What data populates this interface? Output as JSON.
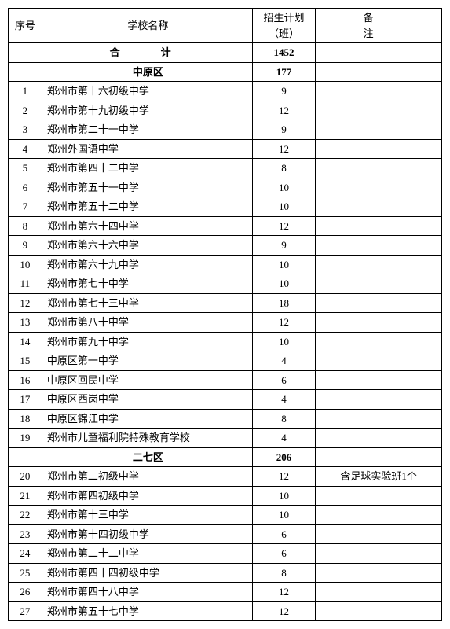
{
  "headers": {
    "num": "序号",
    "name": "学校名称",
    "plan_line1": "招生计划",
    "plan_line2": "（班）",
    "note": "备　　注"
  },
  "total": {
    "label": "合　计",
    "value": "1452"
  },
  "districts": [
    {
      "name": "中原区",
      "subtotal": "177",
      "rows": [
        {
          "n": "1",
          "name": "郑州市第十六初级中学",
          "plan": "9",
          "note": ""
        },
        {
          "n": "2",
          "name": "郑州市第十九初级中学",
          "plan": "12",
          "note": ""
        },
        {
          "n": "3",
          "name": "郑州市第二十一中学",
          "plan": "9",
          "note": ""
        },
        {
          "n": "4",
          "name": "郑州外国语中学",
          "plan": "12",
          "note": ""
        },
        {
          "n": "5",
          "name": "郑州市第四十二中学",
          "plan": "8",
          "note": ""
        },
        {
          "n": "6",
          "name": "郑州市第五十一中学",
          "plan": "10",
          "note": ""
        },
        {
          "n": "7",
          "name": "郑州市第五十二中学",
          "plan": "10",
          "note": ""
        },
        {
          "n": "8",
          "name": "郑州市第六十四中学",
          "plan": "12",
          "note": ""
        },
        {
          "n": "9",
          "name": "郑州市第六十六中学",
          "plan": "9",
          "note": ""
        },
        {
          "n": "10",
          "name": "郑州市第六十九中学",
          "plan": "10",
          "note": ""
        },
        {
          "n": "11",
          "name": "郑州市第七十中学",
          "plan": "10",
          "note": ""
        },
        {
          "n": "12",
          "name": "郑州市第七十三中学",
          "plan": "18",
          "note": ""
        },
        {
          "n": "13",
          "name": "郑州市第八十中学",
          "plan": "12",
          "note": ""
        },
        {
          "n": "14",
          "name": "郑州市第九十中学",
          "plan": "10",
          "note": ""
        },
        {
          "n": "15",
          "name": "中原区第一中学",
          "plan": "4",
          "note": ""
        },
        {
          "n": "16",
          "name": "中原区回民中学",
          "plan": "6",
          "note": ""
        },
        {
          "n": "17",
          "name": "中原区西岗中学",
          "plan": "4",
          "note": ""
        },
        {
          "n": "18",
          "name": "中原区锦江中学",
          "plan": "8",
          "note": ""
        },
        {
          "n": "19",
          "name": "郑州市儿童福利院特殊教育学校",
          "plan": "4",
          "note": ""
        }
      ]
    },
    {
      "name": "二七区",
      "subtotal": "206",
      "rows": [
        {
          "n": "20",
          "name": "郑州市第二初级中学",
          "plan": "12",
          "note": "含足球实验班1个"
        },
        {
          "n": "21",
          "name": "郑州市第四初级中学",
          "plan": "10",
          "note": ""
        },
        {
          "n": "22",
          "name": "郑州市第十三中学",
          "plan": "10",
          "note": ""
        },
        {
          "n": "23",
          "name": "郑州市第十四初级中学",
          "plan": "6",
          "note": ""
        },
        {
          "n": "24",
          "name": "郑州市第二十二中学",
          "plan": "6",
          "note": ""
        },
        {
          "n": "25",
          "name": "郑州市第四十四初级中学",
          "plan": "8",
          "note": ""
        },
        {
          "n": "26",
          "name": "郑州市第四十八中学",
          "plan": "12",
          "note": ""
        },
        {
          "n": "27",
          "name": "郑州市第五十七中学",
          "plan": "12",
          "note": ""
        }
      ]
    }
  ]
}
